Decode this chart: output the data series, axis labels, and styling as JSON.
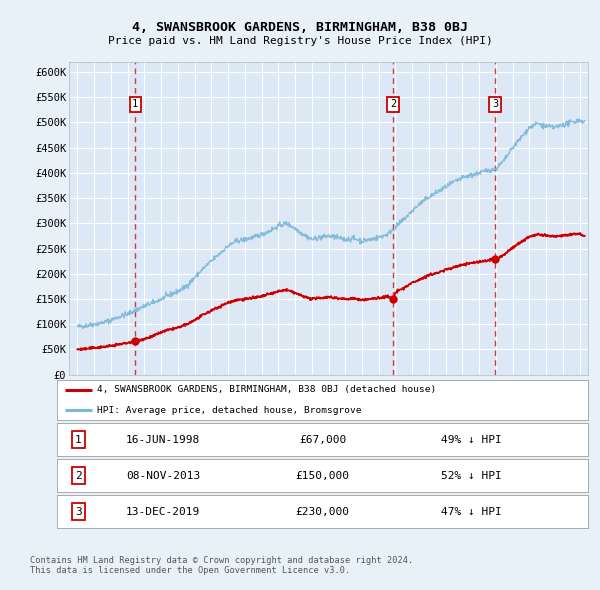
{
  "title": "4, SWANSBROOK GARDENS, BIRMINGHAM, B38 0BJ",
  "subtitle": "Price paid vs. HM Land Registry's House Price Index (HPI)",
  "background_color": "#e8f0f8",
  "plot_bg_color": "#dce8f5",
  "grid_color": "#c8d8e8",
  "hpi_color": "#7ab8d8",
  "price_color": "#cc0000",
  "dashed_line_color": "#cc0000",
  "yticks": [
    0,
    50000,
    100000,
    150000,
    200000,
    250000,
    300000,
    350000,
    400000,
    450000,
    500000,
    550000,
    600000
  ],
  "ytick_labels": [
    "£0",
    "£50K",
    "£100K",
    "£150K",
    "£200K",
    "£250K",
    "£300K",
    "£350K",
    "£400K",
    "£450K",
    "£500K",
    "£550K",
    "£600K"
  ],
  "xmin": 1994.5,
  "xmax": 2025.5,
  "ymin": 0,
  "ymax": 620000,
  "sale_dates": [
    1998.458,
    2013.856,
    2019.956
  ],
  "sale_prices": [
    67000,
    150000,
    230000
  ],
  "sale_labels": [
    "1",
    "2",
    "3"
  ],
  "legend_price_label": "4, SWANSBROOK GARDENS, BIRMINGHAM, B38 0BJ (detached house)",
  "legend_hpi_label": "HPI: Average price, detached house, Bromsgrove",
  "table_data": [
    [
      "1",
      "16-JUN-1998",
      "£67,000",
      "49% ↓ HPI"
    ],
    [
      "2",
      "08-NOV-2013",
      "£150,000",
      "52% ↓ HPI"
    ],
    [
      "3",
      "13-DEC-2019",
      "£230,000",
      "47% ↓ HPI"
    ]
  ],
  "footer": "Contains HM Land Registry data © Crown copyright and database right 2024.\nThis data is licensed under the Open Government Licence v3.0."
}
